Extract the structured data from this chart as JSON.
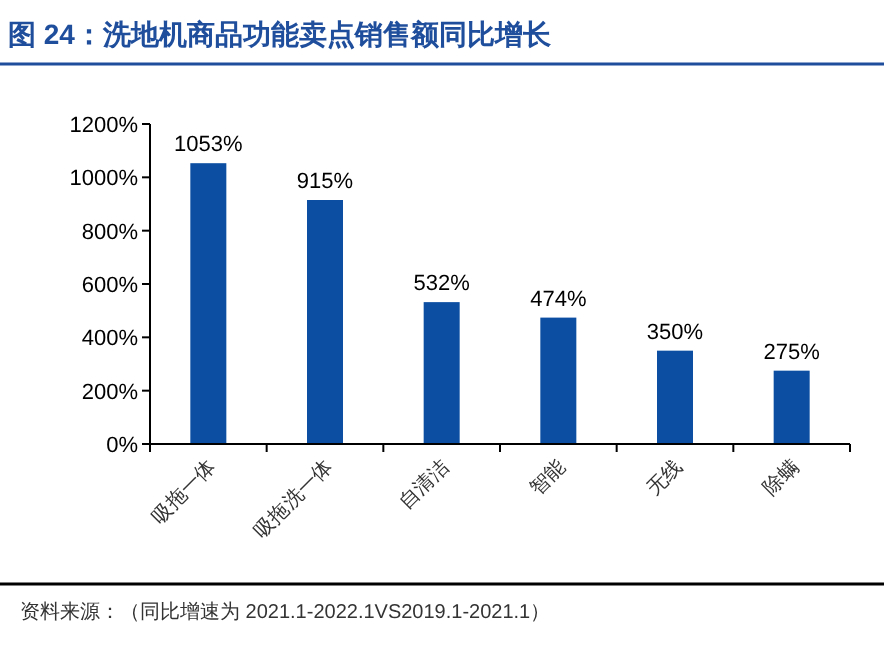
{
  "chart_data": {
    "type": "bar",
    "title": "图 24：洗地机商品功能卖点销售额同比增长",
    "categories": [
      "吸拖一体",
      "吸拖洗一体",
      "自清洁",
      "智能",
      "无线",
      "除螨"
    ],
    "values": [
      1053,
      915,
      532,
      474,
      350,
      275
    ],
    "value_labels": [
      "1053%",
      "915%",
      "532%",
      "474%",
      "350%",
      "275%"
    ],
    "color": "#0b4ea2",
    "ylim": [
      0,
      1200
    ],
    "yticks": [
      {
        "value": 0,
        "label": "0%"
      },
      {
        "value": 200,
        "label": "200%"
      },
      {
        "value": 400,
        "label": "400%"
      },
      {
        "value": 600,
        "label": "600%"
      },
      {
        "value": 800,
        "label": "800%"
      },
      {
        "value": 1000,
        "label": "1000%"
      },
      {
        "value": 1200,
        "label": "1200%"
      }
    ],
    "grid": false,
    "annotations": [
      "资料来源：（同比增速为 2021.1-2022.1VS2019.1-2021.1）"
    ]
  }
}
